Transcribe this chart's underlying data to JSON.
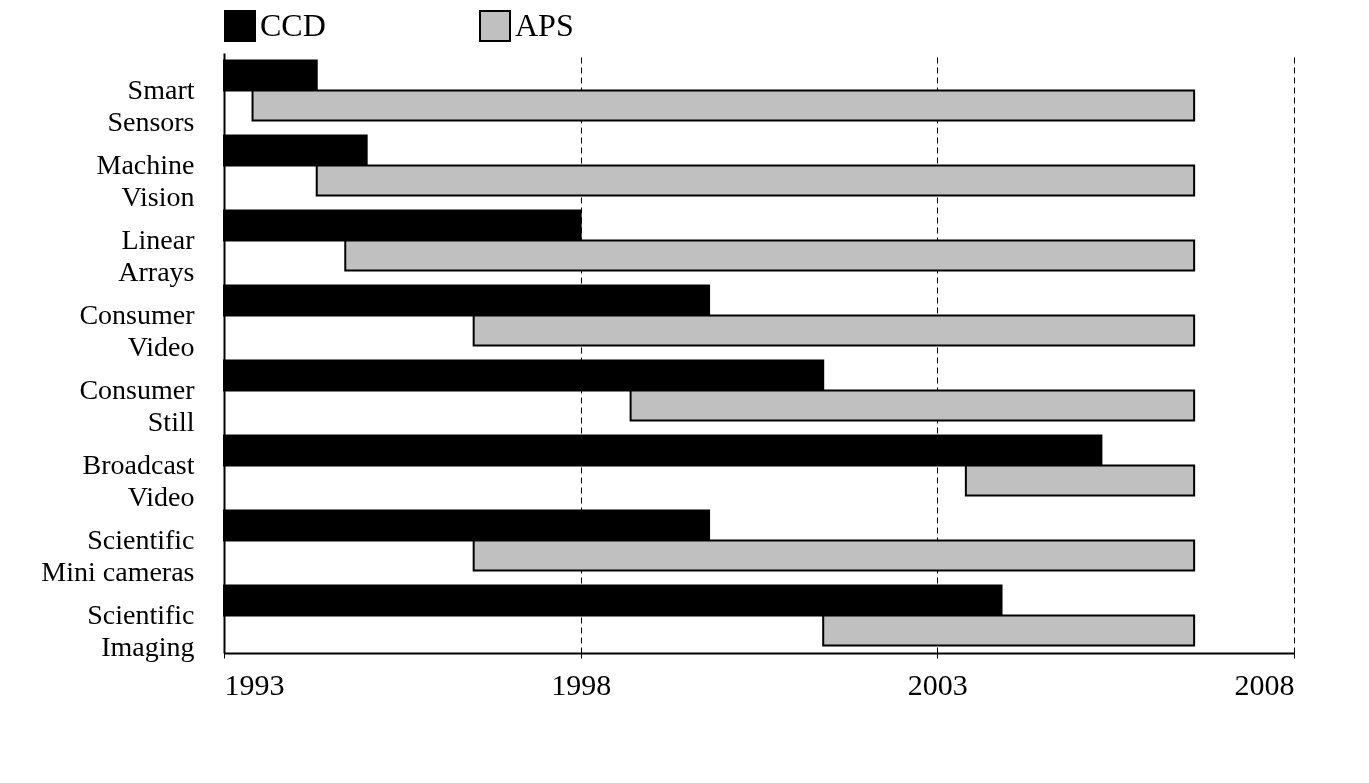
{
  "chart_data": {
    "type": "bar",
    "orientation": "horizontal",
    "categories": [
      "Smart\nSensors",
      "Machine\nVision",
      "Linear\nArrays",
      "Consumer\nVideo",
      "Consumer\nStill",
      "Broadcast\nVideo",
      "Scientific\nMini cameras",
      "Scientific\nImaging"
    ],
    "series": [
      {
        "name": "CCD",
        "color": "#000000",
        "base": [
          1993,
          1993,
          1993,
          1993,
          1993,
          1993,
          1993,
          1993
        ],
        "values": [
          1.3,
          2.0,
          5.0,
          6.8,
          8.4,
          12.3,
          6.8,
          10.9
        ]
      },
      {
        "name": "APS",
        "color": "#c0c0c0",
        "base": [
          1993.4,
          1994.3,
          1994.7,
          1996.5,
          1998.7,
          2003.4,
          1996.5,
          2001.4
        ],
        "values": [
          13.2,
          12.3,
          11.9,
          10.1,
          7.9,
          3.2,
          10.1,
          5.2
        ]
      }
    ],
    "xlim": [
      1993,
      2008
    ],
    "xticks": [
      1993,
      1998,
      2003,
      2008
    ],
    "grid": "x",
    "line_style": "dashed",
    "legend": "top"
  }
}
